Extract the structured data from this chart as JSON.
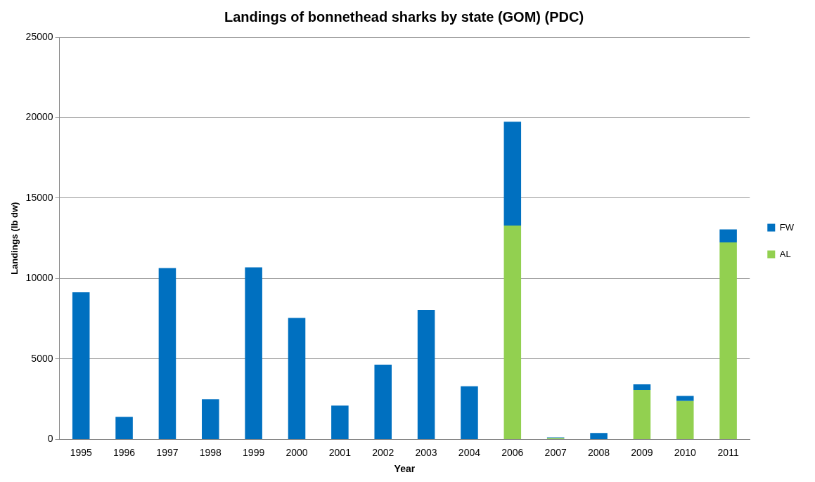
{
  "chart_data": {
    "type": "bar",
    "title": "Landings of bonnethead sharks by state (GOM) (PDC)",
    "xlabel": "Year",
    "ylabel": "Landings (lb dw)",
    "categories": [
      "1995",
      "1996",
      "1997",
      "1998",
      "1999",
      "2000",
      "2001",
      "2002",
      "2003",
      "2004",
      "2006",
      "2007",
      "2008",
      "2009",
      "2010",
      "2011"
    ],
    "stacked": true,
    "series": [
      {
        "name": "AL",
        "color": "#92d050",
        "values": [
          0,
          0,
          0,
          0,
          0,
          0,
          0,
          0,
          0,
          0,
          13300,
          80,
          0,
          3080,
          2390,
          12250
        ]
      },
      {
        "name": "FW",
        "color": "#0070c0",
        "values": [
          9150,
          1400,
          10650,
          2500,
          10700,
          7550,
          2100,
          4650,
          8050,
          3300,
          6450,
          50,
          400,
          340,
          310,
          800
        ]
      }
    ],
    "ylim": [
      0,
      25000
    ],
    "yticks": [
      0,
      5000,
      10000,
      15000,
      20000,
      25000
    ],
    "grid": "y",
    "legend": "right"
  }
}
